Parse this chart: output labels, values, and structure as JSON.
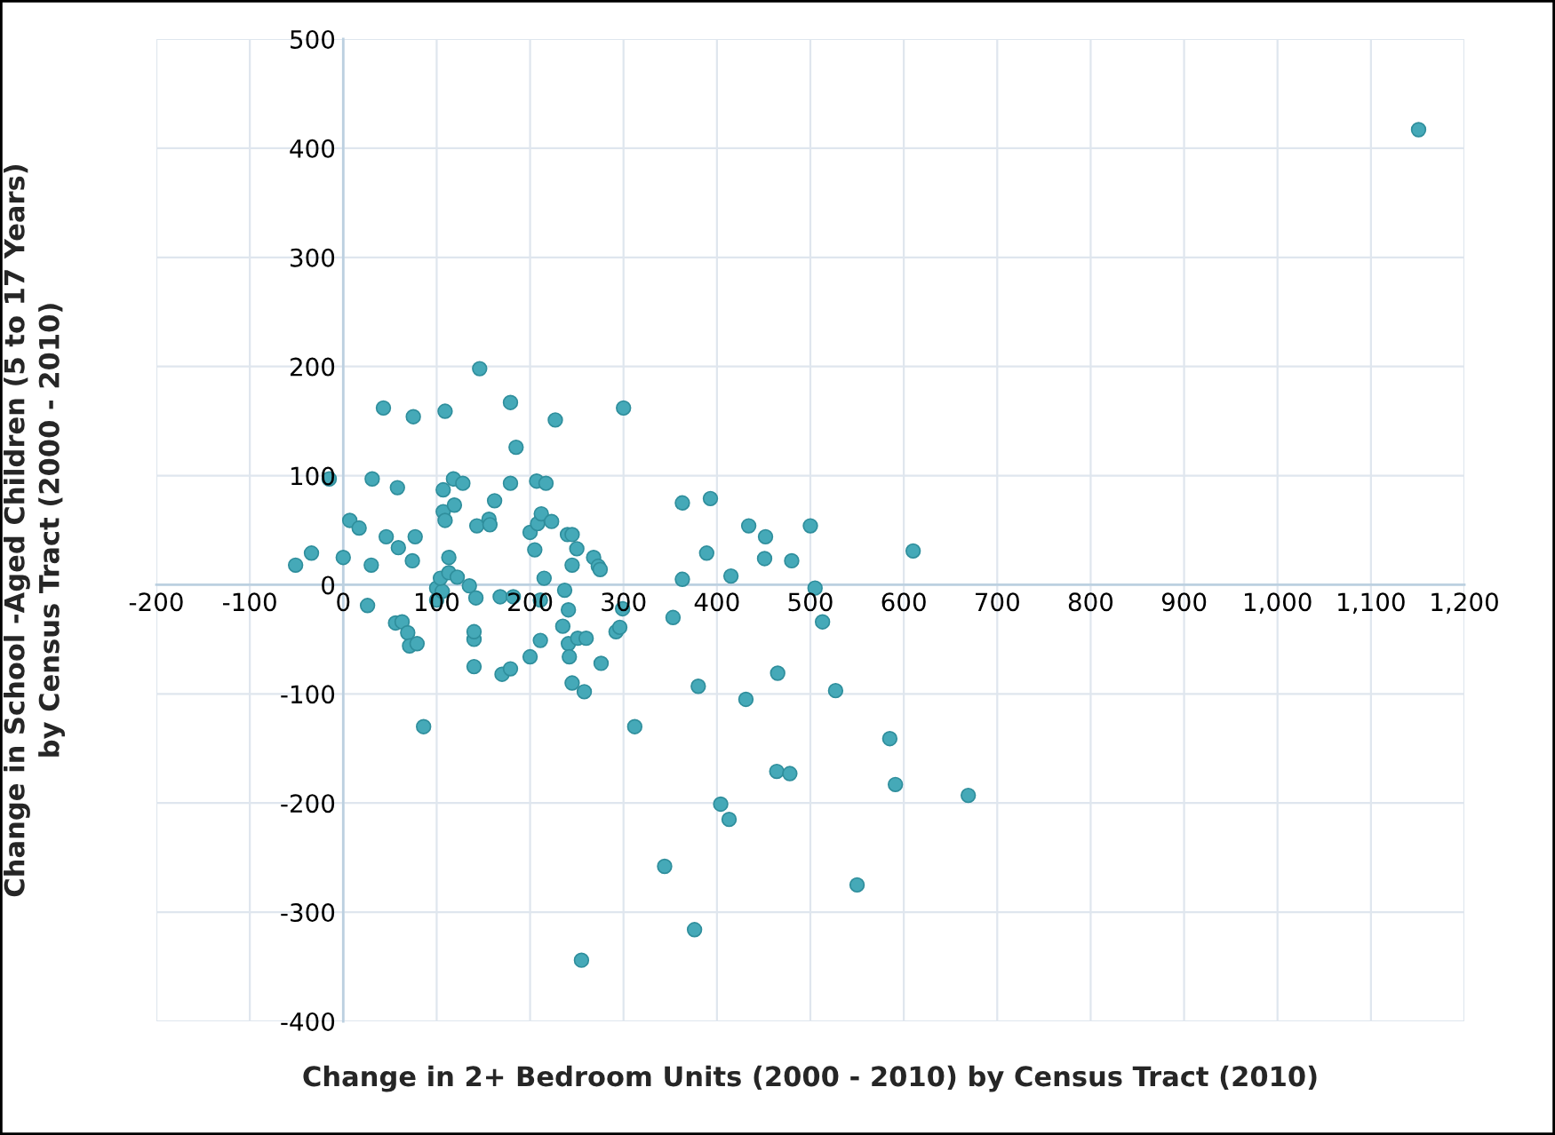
{
  "chart_data": {
    "type": "scatter",
    "xlabel": "Change in 2+ Bedroom Units (2000 - 2010) by Census Tract (2010)",
    "ylabel": "Change in School -Aged Children (5 to 17 Years)\nby Census Tract (2000 - 2010)",
    "xlim": [
      -200,
      1200
    ],
    "ylim": [
      -400,
      500
    ],
    "xticks": [
      -200,
      -100,
      0,
      100,
      200,
      300,
      400,
      500,
      600,
      700,
      800,
      900,
      {
        "value": 1000,
        "label": "1,000"
      },
      {
        "value": 1100,
        "label": "1,100"
      },
      {
        "value": 1200,
        "label": "1,200"
      }
    ],
    "yticks": [
      -400,
      -300,
      -200,
      -100,
      0,
      100,
      200,
      300,
      400,
      500
    ],
    "grid": true,
    "marker": "circle",
    "series": [
      {
        "color": "#45a9b8",
        "x": [
          1151,
          -15,
          -51,
          -34,
          0,
          7,
          17,
          30,
          26,
          31,
          43,
          46,
          58,
          59,
          56,
          63,
          69,
          71,
          79,
          74,
          77,
          75,
          86,
          100,
          100,
          106,
          104,
          107,
          107,
          109,
          109,
          113,
          113,
          118,
          119,
          122,
          128,
          135,
          140,
          140,
          142,
          143,
          140,
          146,
          156,
          157,
          162,
          168,
          170,
          179,
          182,
          179,
          179,
          185,
          200,
          200,
          205,
          207,
          208,
          211,
          211,
          212,
          215,
          217,
          223,
          227,
          235,
          237,
          240,
          241,
          241,
          242,
          245,
          245,
          245,
          250,
          251,
          255,
          258,
          260,
          268,
          273,
          275,
          276,
          292,
          296,
          299,
          300,
          312,
          344,
          353,
          363,
          363,
          376,
          380,
          389,
          393,
          404,
          413,
          415,
          431,
          434,
          451,
          452,
          465,
          464,
          478,
          480,
          500,
          505,
          513,
          527,
          550,
          585,
          591,
          610,
          669
        ],
        "values": [
          417,
          97,
          18,
          29,
          25,
          59,
          52,
          18,
          -19,
          97,
          162,
          44,
          89,
          34,
          -35,
          -34,
          -44,
          -56,
          -54,
          22,
          44,
          154,
          -130,
          -14,
          -3,
          -6,
          6,
          87,
          67,
          59,
          159,
          25,
          11,
          97,
          73,
          7,
          93,
          -1,
          -50,
          -43,
          -12,
          54,
          -75,
          198,
          60,
          55,
          77,
          -11,
          -82,
          -77,
          -11,
          93,
          167,
          126,
          48,
          -66,
          32,
          95,
          56,
          -51,
          -14,
          65,
          6,
          93,
          58,
          151,
          -38,
          -5,
          46,
          -23,
          -54,
          -66,
          46,
          18,
          -90,
          33,
          -49,
          -344,
          -98,
          -49,
          25,
          17,
          14,
          -72,
          -43,
          -39,
          -22,
          162,
          -130,
          -258,
          -30,
          75,
          5,
          -316,
          -93,
          29,
          79,
          -201,
          -215,
          8,
          -105,
          54,
          24,
          44,
          -81,
          -171,
          -173,
          22,
          54,
          -3,
          -34,
          -97,
          -275,
          -141,
          -183,
          31,
          -193
        ]
      }
    ]
  }
}
